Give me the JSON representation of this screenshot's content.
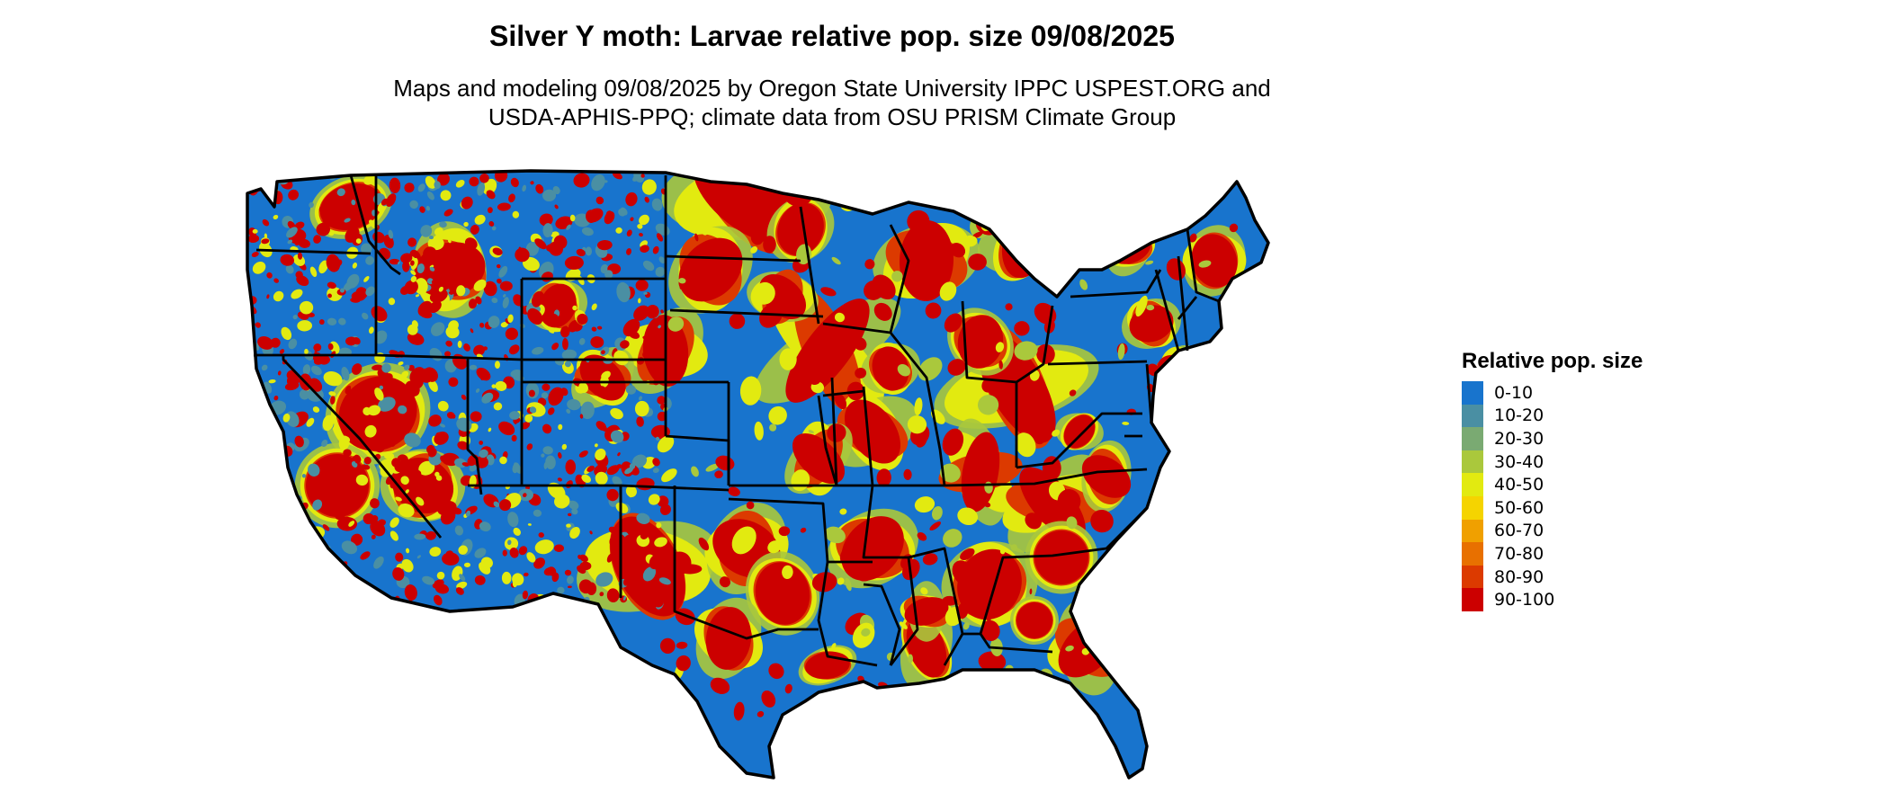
{
  "title": "Silver Y moth: Larvae relative pop. size 09/08/2025",
  "subtitle_lines": [
    "Maps and modeling 09/08/2025 by Oregon State University IPPC USPEST.ORG and",
    "USDA-APHIS-PPQ; climate data from OSU PRISM Climate Group"
  ],
  "map": {
    "region": "Contiguous United States",
    "base_color": "#1a73c9",
    "state_border_color": "#000000"
  },
  "legend": {
    "title": "Relative pop. size",
    "items": [
      {
        "label": "0-10",
        "color": "#1874cd"
      },
      {
        "label": "10-20",
        "color": "#4a8fa3"
      },
      {
        "label": "20-30",
        "color": "#7aaa72"
      },
      {
        "label": "30-40",
        "color": "#aac83c"
      },
      {
        "label": "40-50",
        "color": "#e2ea10"
      },
      {
        "label": "50-60",
        "color": "#f5d400"
      },
      {
        "label": "60-70",
        "color": "#f0a000"
      },
      {
        "label": "70-80",
        "color": "#e87000"
      },
      {
        "label": "80-90",
        "color": "#dc3a00"
      },
      {
        "label": "90-100",
        "color": "#cc0000"
      }
    ]
  }
}
